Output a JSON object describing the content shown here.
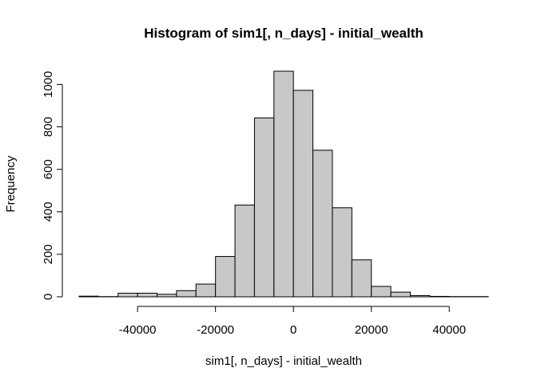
{
  "chart_data": {
    "type": "bar",
    "title": "Histogram of sim1[, n_days] - initial_wealth",
    "xlabel": "sim1[, n_days] - initial_wealth",
    "ylabel": "Frequency",
    "bin_edges": [
      -55000,
      -50000,
      -45000,
      -40000,
      -35000,
      -30000,
      -25000,
      -20000,
      -15000,
      -10000,
      -5000,
      0,
      5000,
      10000,
      15000,
      20000,
      25000,
      30000,
      35000,
      40000,
      45000,
      50000
    ],
    "values": [
      3,
      1,
      17,
      17,
      12,
      29,
      60,
      190,
      432,
      842,
      1062,
      972,
      690,
      419,
      174,
      49,
      22,
      6,
      2,
      1,
      1
    ],
    "xlim": [
      -55000,
      50000
    ],
    "ylim": [
      0,
      1062
    ],
    "x_ticks": [
      -40000,
      -20000,
      0,
      20000,
      40000
    ],
    "x_tick_labels": [
      "-40000",
      "-20000",
      "0",
      "20000",
      "40000"
    ],
    "y_ticks": [
      0,
      200,
      400,
      600,
      800,
      1000
    ],
    "y_tick_labels": [
      "0",
      "200",
      "400",
      "600",
      "800",
      "1000"
    ],
    "bar_fill": "#c8c8c8",
    "grid": false,
    "legend": "none"
  }
}
